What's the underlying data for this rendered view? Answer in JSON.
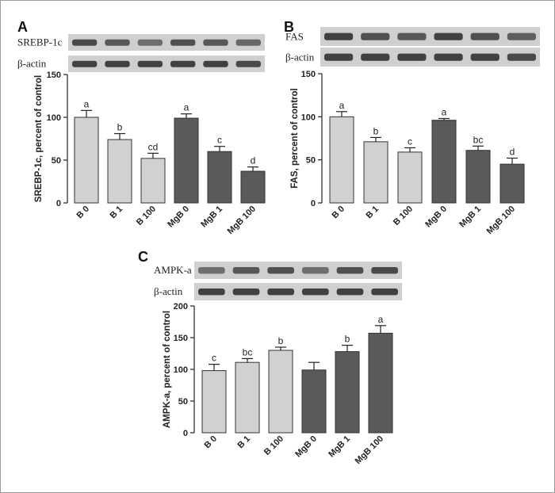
{
  "figure": {
    "border_color": "#9a9a9a"
  },
  "colors": {
    "B": "#d0d2d1",
    "MgB": "#5a5a5a",
    "band_dark": "#4b4b4b",
    "band_bg": "#cfcfcf"
  },
  "chart_data": [
    {
      "panel": "A",
      "type": "bar",
      "categories": [
        "B 0",
        "B 1",
        "B 100",
        "MgB 0",
        "MgB 1",
        "MgB 100"
      ],
      "groups": [
        "B",
        "B",
        "B",
        "MgB",
        "MgB",
        "MgB"
      ],
      "values": [
        100,
        74,
        52,
        99,
        60,
        37
      ],
      "errors": [
        8,
        7,
        6,
        5,
        6,
        5
      ],
      "significance": [
        "a",
        "b",
        "cd",
        "a",
        "c",
        "d"
      ],
      "ylabel": "SREBP-1c, percent of control",
      "ylim": [
        0,
        150
      ],
      "yticks": [
        0,
        50,
        100,
        150
      ],
      "blots": [
        {
          "label": "SREBP-1c",
          "intensity": [
            0.85,
            0.75,
            0.6,
            0.8,
            0.75,
            0.65
          ]
        },
        {
          "label": "β-actin",
          "intensity": [
            0.9,
            0.9,
            0.9,
            0.9,
            0.9,
            0.85
          ]
        }
      ]
    },
    {
      "panel": "B",
      "type": "bar",
      "categories": [
        "B 0",
        "B 1",
        "B 100",
        "MgB 0",
        "MgB 1",
        "MgB 100"
      ],
      "groups": [
        "B",
        "B",
        "B",
        "MgB",
        "MgB",
        "MgB"
      ],
      "values": [
        100,
        71,
        59,
        96,
        61,
        45
      ],
      "errors": [
        6,
        5,
        5,
        2,
        5,
        7
      ],
      "significance": [
        "a",
        "b",
        "c",
        "a",
        "bc",
        "d"
      ],
      "ylabel": "FAS, percent of control",
      "ylim": [
        0,
        150
      ],
      "yticks": [
        0,
        50,
        100,
        150
      ],
      "blots": [
        {
          "label": "FAS",
          "intensity": [
            0.9,
            0.8,
            0.75,
            0.9,
            0.8,
            0.7
          ]
        },
        {
          "label": "β-actin",
          "intensity": [
            0.9,
            0.9,
            0.9,
            0.9,
            0.9,
            0.85
          ]
        }
      ]
    },
    {
      "panel": "C",
      "type": "bar",
      "categories": [
        "B 0",
        "B 1",
        "B 100",
        "MgB 0",
        "MgB 1",
        "MgB 100"
      ],
      "groups": [
        "B",
        "B",
        "B",
        "MgB",
        "MgB",
        "MgB"
      ],
      "values": [
        98,
        111,
        130,
        99,
        128,
        157
      ],
      "errors": [
        10,
        6,
        5,
        12,
        10,
        12
      ],
      "significance": [
        "c",
        "bc",
        "b",
        "",
        "b",
        "a"
      ],
      "ylabel": "AMPK-a, percent of control",
      "ylim": [
        0,
        200
      ],
      "yticks": [
        0,
        50,
        100,
        150,
        200
      ],
      "blots": [
        {
          "label": "AMPK-a",
          "intensity": [
            0.6,
            0.75,
            0.8,
            0.6,
            0.8,
            0.85
          ]
        },
        {
          "label": "β-actin",
          "intensity": [
            0.9,
            0.9,
            0.9,
            0.9,
            0.9,
            0.9
          ]
        }
      ]
    }
  ]
}
